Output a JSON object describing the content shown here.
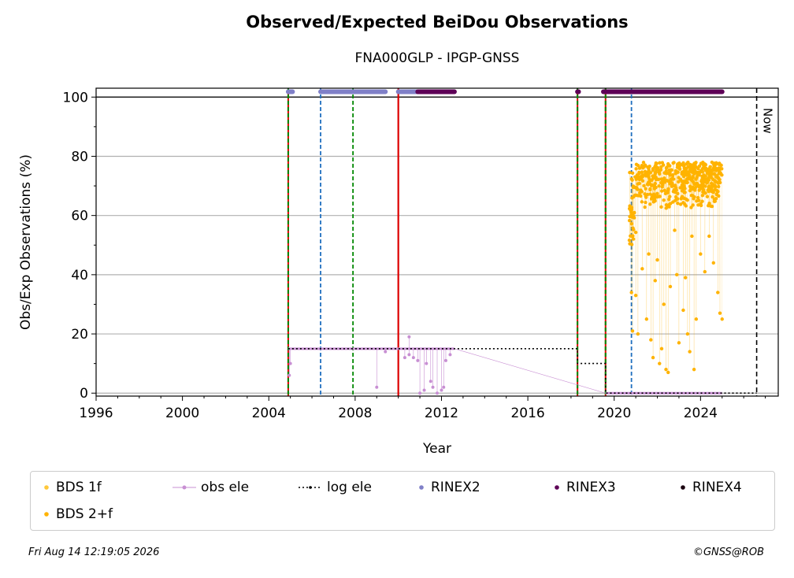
{
  "chart_data": {
    "type": "scatter",
    "title": "Observed/Expected BeiDou Observations",
    "subtitle": "FNA000GLP - IPGP-GNSS",
    "xlabel": "Year",
    "ylabel": "Obs/Exp Observations (%)",
    "xlim": [
      1996,
      2027.6
    ],
    "ylim": [
      -1,
      103
    ],
    "xticks": [
      1996,
      2000,
      2004,
      2008,
      2012,
      2016,
      2020,
      2024
    ],
    "yticks": [
      0,
      20,
      40,
      60,
      80,
      100
    ],
    "grid": "horizontal",
    "now_label": "Now",
    "now_x": 2026.6,
    "reference_line_y": 100,
    "vlines": [
      {
        "x": 2004.9,
        "style": "red-green-dashed"
      },
      {
        "x": 2006.4,
        "style": "blue-dashed"
      },
      {
        "x": 2007.9,
        "style": "green-dashed"
      },
      {
        "x": 2010.0,
        "style": "red-solid"
      },
      {
        "x": 2018.3,
        "style": "red-green-dashed"
      },
      {
        "x": 2019.6,
        "style": "red-green-dashed"
      },
      {
        "x": 2020.8,
        "style": "blue-dashed"
      }
    ],
    "log_ele": [
      [
        2004.9,
        15
      ],
      [
        2018.3,
        15
      ],
      [
        2018.3,
        10
      ],
      [
        2019.6,
        10
      ],
      [
        2019.6,
        0
      ],
      [
        2026.6,
        0
      ]
    ],
    "obs_ele": {
      "seg1": {
        "x": [
          2004.9,
          2012.6
        ],
        "y": 15
      },
      "seg2": {
        "x": [
          2019.6,
          2025.0
        ],
        "y": 0
      },
      "outliers": [
        [
          2004.95,
          6
        ],
        [
          2005.0,
          10
        ],
        [
          2009.0,
          2
        ],
        [
          2009.4,
          14
        ],
        [
          2010.3,
          12
        ],
        [
          2010.5,
          13
        ],
        [
          2010.5,
          19
        ],
        [
          2010.7,
          12
        ],
        [
          2010.9,
          11
        ],
        [
          2011.0,
          0
        ],
        [
          2011.2,
          1
        ],
        [
          2011.3,
          10
        ],
        [
          2011.5,
          4
        ],
        [
          2011.6,
          2
        ],
        [
          2011.8,
          0
        ],
        [
          2012.0,
          1
        ],
        [
          2012.1,
          2
        ],
        [
          2012.2,
          11
        ],
        [
          2012.4,
          13
        ]
      ]
    },
    "bds_2f": {
      "x_range": [
        2020.7,
        2025.0
      ],
      "band": [
        62,
        78
      ],
      "outliers": [
        [
          2020.8,
          34
        ],
        [
          2020.85,
          21
        ],
        [
          2021.0,
          33
        ],
        [
          2021.1,
          20
        ],
        [
          2021.3,
          42
        ],
        [
          2021.5,
          25
        ],
        [
          2021.6,
          47
        ],
        [
          2021.7,
          18
        ],
        [
          2021.8,
          12
        ],
        [
          2021.9,
          38
        ],
        [
          2022.0,
          45
        ],
        [
          2022.1,
          10
        ],
        [
          2022.2,
          15
        ],
        [
          2022.3,
          30
        ],
        [
          2022.4,
          8
        ],
        [
          2022.5,
          7
        ],
        [
          2022.6,
          36
        ],
        [
          2022.8,
          55
        ],
        [
          2022.9,
          40
        ],
        [
          2023.0,
          17
        ],
        [
          2023.2,
          28
        ],
        [
          2023.3,
          39
        ],
        [
          2023.4,
          20
        ],
        [
          2023.5,
          14
        ],
        [
          2023.6,
          53
        ],
        [
          2023.7,
          8
        ],
        [
          2023.8,
          25
        ],
        [
          2024.0,
          47
        ],
        [
          2024.2,
          41
        ],
        [
          2024.4,
          53
        ],
        [
          2024.6,
          44
        ],
        [
          2024.8,
          34
        ],
        [
          2024.9,
          27
        ],
        [
          2025.0,
          25
        ]
      ]
    },
    "rinex2_bars": [
      [
        2004.9,
        2005.1
      ],
      [
        2006.4,
        2009.4
      ],
      [
        2010.0,
        2010.9
      ]
    ],
    "rinex3_bars": [
      [
        2010.9,
        2012.6
      ],
      [
        2018.3,
        2018.35
      ],
      [
        2019.5,
        2025.0
      ]
    ],
    "legend": [
      {
        "label": "BDS 1f",
        "color": "#ffc83a",
        "marker": "dot"
      },
      {
        "label": "obs ele",
        "color": "#c88fd3",
        "marker": "line-dot"
      },
      {
        "label": "log ele",
        "color": "#000000",
        "marker": "dotted-line"
      },
      {
        "label": "RINEX2",
        "color": "#8080c8",
        "marker": "dot"
      },
      {
        "label": "RINEX3",
        "color": "#5e0057",
        "marker": "dot"
      },
      {
        "label": "RINEX4",
        "color": "#1a0010",
        "marker": "dot"
      },
      {
        "label": "BDS 2+f",
        "color": "#ffb300",
        "marker": "dot"
      }
    ],
    "colors": {
      "bds_2f": "#ffb300",
      "obs_ele": "#c88fd3",
      "rinex2": "#8080c8",
      "rinex3": "#5e0057",
      "red": "#dd0000",
      "green": "#008800",
      "blue": "#1f6fbf",
      "grid": "#b0b0b0"
    }
  },
  "footer": {
    "date": "Fri Aug 14 12:19:05 2026",
    "credit": "©GNSS@ROB"
  }
}
